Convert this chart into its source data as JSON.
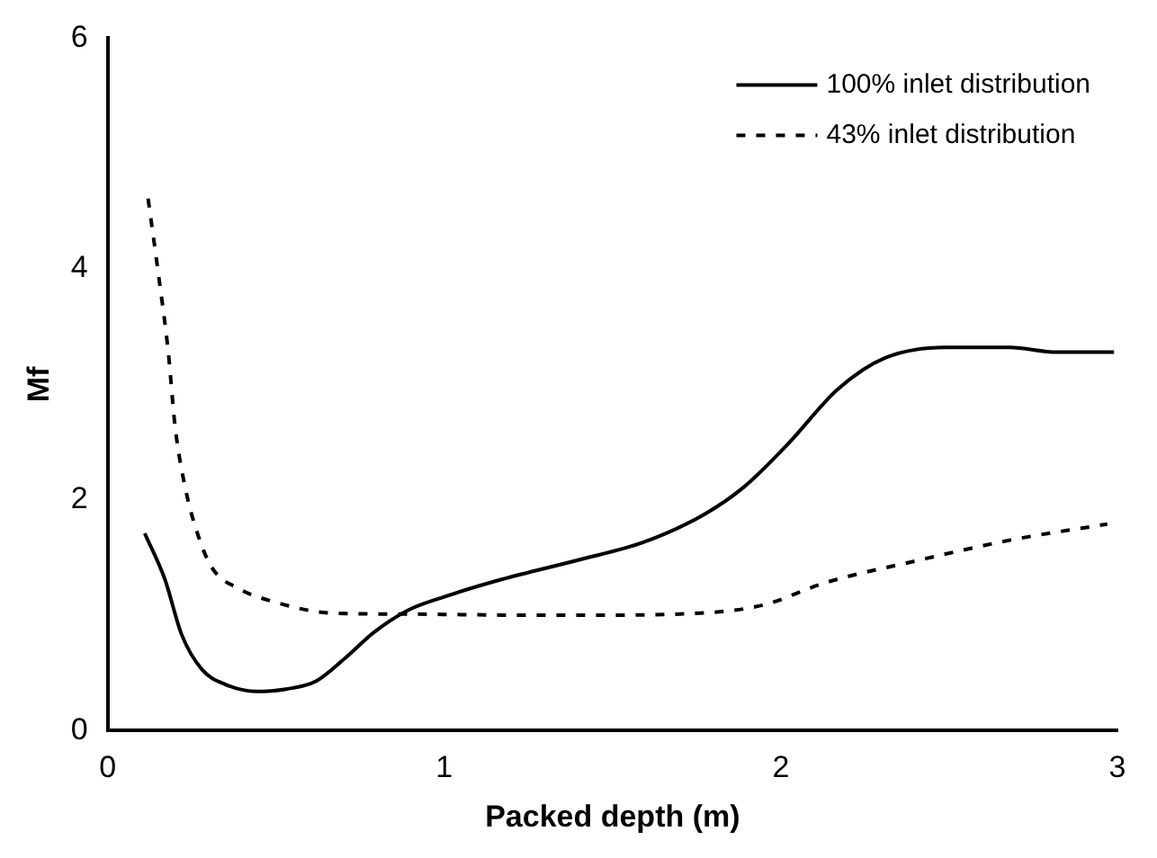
{
  "chart_data": {
    "type": "line",
    "xlabel": "Packed depth (m)",
    "ylabel": "Mf",
    "xlim": [
      0,
      3
    ],
    "xticks": [
      0,
      1,
      2,
      3
    ],
    "ylim": [
      0,
      6
    ],
    "yticks": [
      0,
      2,
      4,
      6
    ],
    "grid": false,
    "legend": "top right",
    "marker": "none",
    "series": [
      {
        "name": "100% inlet distribution",
        "color": "#000000",
        "line_style": "solid",
        "x": [
          0.11,
          0.17,
          0.22,
          0.28,
          0.35,
          0.44,
          0.53,
          0.62,
          0.71,
          0.79,
          0.89,
          0.99,
          1.17,
          1.4,
          1.59,
          1.77,
          1.89,
          2.02,
          2.17,
          2.31,
          2.49,
          2.68,
          2.82,
          2.99
        ],
        "values": [
          1.71,
          1.31,
          0.83,
          0.53,
          0.4,
          0.34,
          0.36,
          0.43,
          0.64,
          0.85,
          1.04,
          1.15,
          1.31,
          1.48,
          1.63,
          1.87,
          2.11,
          2.48,
          2.96,
          3.23,
          3.32,
          3.32,
          3.28,
          3.28
        ]
      },
      {
        "name": "43% inlet distribution",
        "color": "#000000",
        "line_style": "dashed",
        "x": [
          0.12,
          0.15,
          0.18,
          0.2,
          0.23,
          0.27,
          0.31,
          0.39,
          0.49,
          0.66,
          0.89,
          1.26,
          1.42,
          1.77,
          1.95,
          2.13,
          2.4,
          2.68,
          2.97
        ],
        "values": [
          4.61,
          3.97,
          3.28,
          2.64,
          2.11,
          1.68,
          1.41,
          1.23,
          1.12,
          1.02,
          1.01,
          1.0,
          1.0,
          1.02,
          1.09,
          1.28,
          1.47,
          1.65,
          1.79
        ]
      }
    ]
  }
}
